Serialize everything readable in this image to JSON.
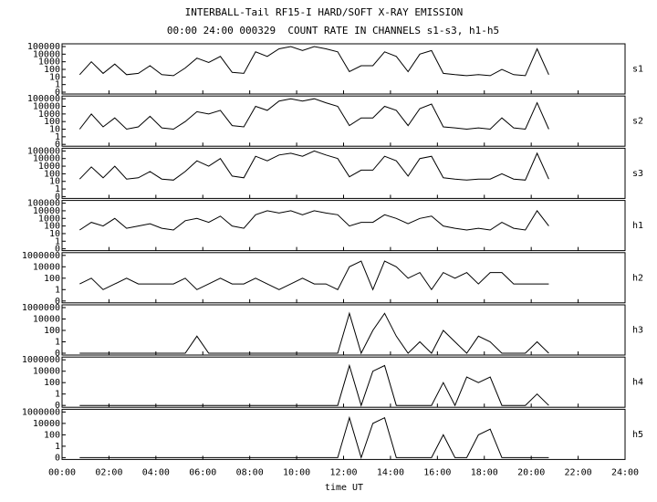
{
  "chart_data": {
    "type": "line",
    "title": "INTERBALL-Tail RF15-I HARD/SOFT X-RAY EMISSION",
    "subtitle": "00:00 24:00 000329  COUNT RATE IN CHANNELS s1-s3, h1-h5",
    "xlabel": "time UT",
    "log_y": true,
    "xlim": [
      0,
      24
    ],
    "xticks": [
      {
        "value": 0,
        "label": "00:00"
      },
      {
        "value": 2,
        "label": "02:00"
      },
      {
        "value": 4,
        "label": "04:00"
      },
      {
        "value": 6,
        "label": "06:00"
      },
      {
        "value": 8,
        "label": "08:00"
      },
      {
        "value": 10,
        "label": "10:00"
      },
      {
        "value": 12,
        "label": "12:00"
      },
      {
        "value": 14,
        "label": "14:00"
      },
      {
        "value": 16,
        "label": "16:00"
      },
      {
        "value": 18,
        "label": "18:00"
      },
      {
        "value": 20,
        "label": "20:00"
      },
      {
        "value": 22,
        "label": "22:00"
      },
      {
        "value": 24,
        "label": "24:00"
      }
    ],
    "x": [
      0.75,
      1.25,
      1.75,
      2.25,
      2.75,
      3.25,
      3.75,
      4.25,
      4.75,
      5.25,
      5.75,
      6.25,
      6.75,
      7.25,
      7.75,
      8.25,
      8.75,
      9.25,
      9.75,
      10.25,
      10.75,
      11.25,
      11.75,
      12.25,
      12.75,
      13.25,
      13.75,
      14.25,
      14.75,
      15.25,
      15.75,
      16.25,
      16.75,
      17.25,
      17.75,
      18.25,
      18.75,
      19.25,
      19.75,
      20.25,
      20.75
    ],
    "series": [
      {
        "name": "s1",
        "color": "#000000",
        "ylim": [
          0,
          100000
        ],
        "yticks": [
          0,
          1,
          10,
          100,
          1000,
          10000,
          100000
        ],
        "values": [
          20,
          1000,
          30,
          500,
          20,
          30,
          300,
          20,
          15,
          150,
          3000,
          800,
          5000,
          40,
          30,
          20000,
          5000,
          50000,
          100000,
          30000,
          100000,
          50000,
          20000,
          50,
          300,
          300,
          20000,
          5000,
          50,
          10000,
          30000,
          30,
          20,
          15,
          20,
          15,
          100,
          20,
          15,
          50000,
          20
        ]
      },
      {
        "name": "s2",
        "color": "#000000",
        "ylim": [
          0,
          100000
        ],
        "yticks": [
          0,
          1,
          10,
          100,
          1000,
          10000,
          100000
        ],
        "values": [
          10,
          1000,
          20,
          300,
          10,
          20,
          500,
          15,
          10,
          100,
          2000,
          1000,
          3000,
          30,
          20,
          10000,
          3000,
          50000,
          100000,
          50000,
          100000,
          30000,
          10000,
          30,
          300,
          300,
          10000,
          3000,
          30,
          5000,
          20000,
          20,
          15,
          10,
          15,
          10,
          300,
          15,
          10,
          30000,
          10
        ]
      },
      {
        "name": "s3",
        "color": "#000000",
        "ylim": [
          0,
          100000
        ],
        "yticks": [
          0,
          1,
          10,
          100,
          1000,
          10000,
          100000
        ],
        "values": [
          20,
          800,
          30,
          1000,
          20,
          30,
          200,
          20,
          15,
          200,
          5000,
          1000,
          10000,
          50,
          30,
          20000,
          5000,
          30000,
          50000,
          20000,
          100000,
          30000,
          10000,
          40,
          300,
          300,
          20000,
          5000,
          50,
          10000,
          20000,
          30,
          20,
          15,
          20,
          20,
          100,
          20,
          15,
          50000,
          20
        ]
      },
      {
        "name": "h1",
        "color": "#000000",
        "ylim": [
          0,
          100000
        ],
        "yticks": [
          0,
          1,
          10,
          100,
          1000,
          10000,
          100000
        ],
        "values": [
          30,
          300,
          100,
          1000,
          50,
          100,
          200,
          50,
          30,
          500,
          1000,
          300,
          2000,
          100,
          50,
          3000,
          10000,
          5000,
          10000,
          3000,
          10000,
          5000,
          3000,
          100,
          300,
          300,
          3000,
          1000,
          200,
          1000,
          2000,
          100,
          50,
          30,
          50,
          30,
          300,
          50,
          30,
          10000,
          100
        ]
      },
      {
        "name": "h2",
        "color": "#000000",
        "ylim": [
          0,
          1000000
        ],
        "yticks": [
          0,
          1,
          100,
          10000,
          1000000
        ],
        "values": [
          10,
          100,
          1,
          10,
          100,
          10,
          10,
          10,
          10,
          100,
          1,
          10,
          100,
          10,
          10,
          100,
          10,
          1,
          10,
          100,
          10,
          10,
          1,
          10000,
          100000,
          1,
          100000,
          10000,
          100,
          1000,
          1,
          1000,
          100,
          1000,
          10,
          1000,
          1000,
          10,
          10,
          10,
          10
        ]
      },
      {
        "name": "h3",
        "color": "#000000",
        "ylim": [
          0,
          1000000
        ],
        "yticks": [
          0,
          1,
          100,
          10000,
          1000000
        ],
        "values": [
          0,
          0,
          0,
          0,
          0,
          0,
          0,
          0,
          0,
          0,
          10,
          0,
          0,
          0,
          0,
          0,
          0,
          0,
          0,
          0,
          0,
          0,
          0,
          100000,
          0,
          100,
          100000,
          10,
          0,
          1,
          0,
          100,
          1,
          0,
          10,
          1,
          0,
          0,
          0,
          1,
          0
        ]
      },
      {
        "name": "h4",
        "color": "#000000",
        "ylim": [
          0,
          1000000
        ],
        "yticks": [
          0,
          1,
          100,
          10000,
          1000000
        ],
        "values": [
          0,
          0,
          0,
          0,
          0,
          0,
          0,
          0,
          0,
          0,
          0,
          0,
          0,
          0,
          0,
          0,
          0,
          0,
          0,
          0,
          0,
          0,
          0,
          100000,
          0,
          10000,
          100000,
          0,
          0,
          0,
          0,
          100,
          0,
          1000,
          100,
          1000,
          0,
          0,
          0,
          1,
          0
        ]
      },
      {
        "name": "h5",
        "color": "#000000",
        "ylim": [
          0,
          1000000
        ],
        "yticks": [
          0,
          1,
          100,
          10000,
          1000000
        ],
        "values": [
          0,
          0,
          0,
          0,
          0,
          0,
          0,
          0,
          0,
          0,
          0,
          0,
          0,
          0,
          0,
          0,
          0,
          0,
          0,
          0,
          0,
          0,
          0,
          100000,
          0,
          10000,
          100000,
          0,
          0,
          0,
          0,
          100,
          0,
          0,
          100,
          1000,
          0,
          0,
          0,
          0,
          0
        ]
      }
    ]
  }
}
